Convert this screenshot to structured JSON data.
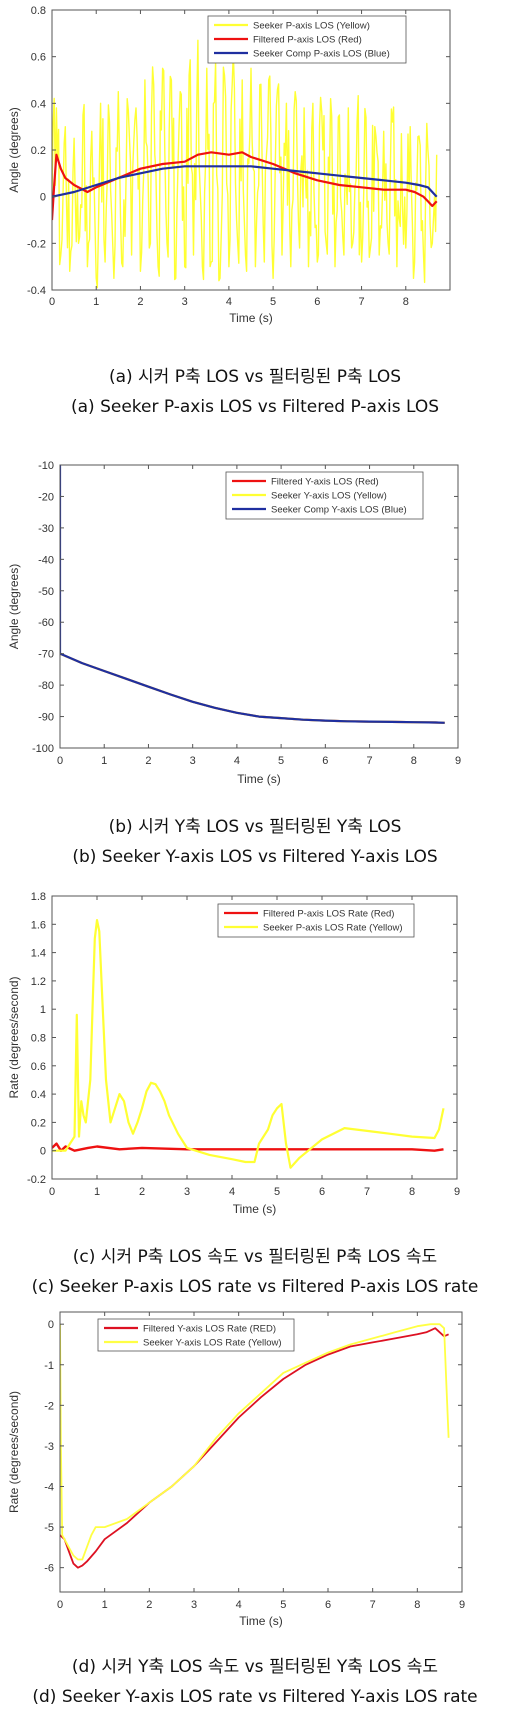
{
  "chart_data": [
    {
      "type": "line",
      "ylabel": "Angle (degrees)",
      "xlabel": "Time (s)",
      "xlim": [
        0,
        9
      ],
      "ylim": [
        -0.4,
        0.8
      ],
      "xticks": [
        0,
        1,
        2,
        3,
        4,
        5,
        6,
        7,
        8
      ],
      "yticks": [
        -0.4,
        -0.2,
        0,
        0.2,
        0.4,
        0.6,
        0.8
      ],
      "grid": false,
      "legend_position": "top-right",
      "series": [
        {
          "name": "Seeker P-axis LOS (Yellow)",
          "color": "#ffff33",
          "noisy": true,
          "width": 1.4,
          "x": [
            0,
            0.1,
            0.2,
            0.3,
            0.4,
            0.5,
            0.6,
            0.7,
            0.8,
            0.9,
            1.0,
            1.1,
            1.2,
            1.3,
            1.4,
            1.5,
            1.6,
            1.7,
            1.8,
            1.9,
            2.0,
            2.1,
            2.2,
            2.3,
            2.4,
            2.5,
            2.6,
            2.7,
            2.8,
            2.9,
            3.0,
            3.1,
            3.2,
            3.3,
            3.4,
            3.5,
            3.6,
            3.7,
            3.8,
            3.9,
            4.0,
            4.1,
            4.2,
            4.3,
            4.4,
            4.5,
            4.6,
            4.7,
            4.8,
            4.9,
            5.0,
            5.1,
            5.2,
            5.3,
            5.4,
            5.5,
            5.6,
            5.7,
            5.8,
            5.9,
            6.0,
            6.1,
            6.2,
            6.3,
            6.4,
            6.5,
            6.6,
            6.7,
            6.8,
            6.9,
            7.0,
            7.1,
            7.2,
            7.3,
            7.4,
            7.5,
            7.6,
            7.7,
            7.8,
            7.9,
            8.0,
            8.1,
            8.2,
            8.3,
            8.4,
            8.5,
            8.6,
            8.7
          ],
          "y": [
            0.0,
            0.38,
            -0.25,
            0.3,
            -0.32,
            0.25,
            -0.2,
            0.35,
            -0.3,
            0.28,
            -0.35,
            0.4,
            -0.28,
            0.32,
            -0.35,
            0.45,
            -0.3,
            0.42,
            -0.25,
            0.38,
            -0.32,
            0.5,
            -0.22,
            0.48,
            -0.3,
            0.55,
            -0.2,
            0.5,
            -0.35,
            0.45,
            -0.3,
            0.52,
            -0.25,
            0.67,
            -0.3,
            0.55,
            -0.28,
            0.58,
            -0.35,
            0.52,
            -0.3,
            0.62,
            -0.2,
            0.5,
            -0.32,
            0.55,
            -0.3,
            0.48,
            -0.28,
            0.5,
            -0.35,
            0.46,
            -0.25,
            0.4,
            -0.3,
            0.45,
            -0.22,
            0.38,
            -0.3,
            0.4,
            -0.28,
            0.36,
            -0.2,
            0.42,
            -0.3,
            0.35,
            -0.25,
            0.38,
            -0.2,
            0.32,
            -0.28,
            0.34,
            -0.22,
            0.3,
            -0.25,
            0.28,
            -0.2,
            0.32,
            -0.3,
            0.27,
            -0.22,
            0.3,
            -0.28,
            0.26,
            -0.25,
            0.2,
            -0.2,
            0.18
          ]
        },
        {
          "name": "Filtered P-axis LOS (Red)",
          "color": "#ee1111",
          "width": 2.2,
          "x": [
            0,
            0.05,
            0.1,
            0.2,
            0.3,
            0.5,
            0.8,
            1.0,
            1.5,
            2.0,
            2.5,
            3.0,
            3.3,
            3.6,
            4.0,
            4.3,
            4.5,
            5.0,
            5.5,
            6.0,
            6.5,
            7.0,
            7.5,
            8.0,
            8.2,
            8.4,
            8.5,
            8.6,
            8.7
          ],
          "y": [
            -0.1,
            0.05,
            0.18,
            0.12,
            0.08,
            0.05,
            0.02,
            0.04,
            0.08,
            0.12,
            0.14,
            0.15,
            0.18,
            0.19,
            0.18,
            0.19,
            0.17,
            0.14,
            0.1,
            0.07,
            0.05,
            0.04,
            0.03,
            0.03,
            0.02,
            0.0,
            -0.02,
            -0.04,
            -0.02
          ]
        },
        {
          "name": "Seeker Comp P-axis LOS (Blue)",
          "color": "#1f2fa0",
          "width": 2.2,
          "x": [
            0,
            0.5,
            1,
            1.5,
            2,
            2.5,
            3,
            3.5,
            4,
            4.5,
            5,
            5.5,
            6,
            6.5,
            7,
            7.5,
            8,
            8.3,
            8.5,
            8.6,
            8.7
          ],
          "y": [
            0.0,
            0.02,
            0.05,
            0.08,
            0.1,
            0.12,
            0.13,
            0.13,
            0.13,
            0.13,
            0.12,
            0.11,
            0.1,
            0.09,
            0.08,
            0.07,
            0.06,
            0.05,
            0.04,
            0.02,
            0.0
          ]
        }
      ]
    },
    {
      "type": "line",
      "ylabel": "Angle (degrees)",
      "xlabel": "Time (s)",
      "xlim": [
        0,
        9
      ],
      "ylim": [
        -100,
        -10
      ],
      "xticks": [
        0,
        1,
        2,
        3,
        4,
        5,
        6,
        7,
        8,
        9
      ],
      "yticks": [
        -100,
        -90,
        -80,
        -70,
        -60,
        -50,
        -40,
        -30,
        -20,
        -10
      ],
      "grid": false,
      "legend_position": "top-right",
      "series": [
        {
          "name": "Filtered Y-axis LOS (Red)",
          "color": "#ee1111",
          "width": 2.2,
          "x": [
            0,
            0.5,
            1,
            1.5,
            2,
            2.5,
            3,
            3.5,
            4,
            4.5,
            5,
            5.5,
            6,
            6.5,
            7,
            7.5,
            8,
            8.5,
            8.7
          ],
          "y": [
            -70,
            -73,
            -75.5,
            -78,
            -80.5,
            -83,
            -85.3,
            -87.2,
            -88.8,
            -90,
            -90.5,
            -91,
            -91.3,
            -91.5,
            -91.6,
            -91.7,
            -91.8,
            -91.9,
            -92
          ]
        },
        {
          "name": "Seeker Y-axis LOS (Yellow)",
          "color": "#ffff33",
          "width": 2.2,
          "x": [
            0,
            0.5,
            1,
            1.5,
            2,
            2.5,
            3,
            3.5,
            4,
            4.5,
            5,
            5.5,
            6,
            6.5,
            7,
            7.5,
            8,
            8.5,
            8.7
          ],
          "y": [
            -70,
            -73,
            -75.5,
            -78,
            -80.5,
            -83,
            -85.3,
            -87.2,
            -88.8,
            -90,
            -90.5,
            -91,
            -91.3,
            -91.5,
            -91.6,
            -91.7,
            -91.8,
            -91.9,
            -92
          ]
        },
        {
          "name": "Seeker Comp Y-axis LOS (Blue)",
          "color": "#1f2fa0",
          "width": 2.2,
          "x": [
            0,
            0,
            0.01,
            0.5,
            1,
            1.5,
            2,
            2.5,
            3,
            3.5,
            4,
            4.5,
            5,
            5.5,
            6,
            6.5,
            7,
            7.5,
            8,
            8.5,
            8.7
          ],
          "y": [
            -10,
            -70,
            -70,
            -73,
            -75.5,
            -78,
            -80.5,
            -83,
            -85.3,
            -87.2,
            -88.8,
            -90,
            -90.5,
            -91,
            -91.3,
            -91.5,
            -91.6,
            -91.7,
            -91.8,
            -91.9,
            -92
          ]
        }
      ]
    },
    {
      "type": "line",
      "ylabel": "Rate (degrees/second)",
      "xlabel": "Time (s)",
      "xlim": [
        0,
        9
      ],
      "ylim": [
        -0.2,
        1.8
      ],
      "xticks": [
        0,
        1,
        2,
        3,
        4,
        5,
        6,
        7,
        8,
        9
      ],
      "yticks": [
        -0.2,
        0,
        0.2,
        0.4,
        0.6,
        0.8,
        1,
        1.2,
        1.4,
        1.6,
        1.8
      ],
      "grid": false,
      "legend_position": "top-right",
      "series": [
        {
          "name": "Filtered P-axis LOS Rate (Red)",
          "color": "#ee1111",
          "width": 2.4,
          "x": [
            0,
            0.1,
            0.2,
            0.3,
            0.5,
            0.8,
            1.0,
            1.5,
            2,
            3,
            4,
            5,
            6,
            7,
            8,
            8.5,
            8.7
          ],
          "y": [
            0.02,
            0.05,
            0.0,
            0.03,
            0.0,
            0.02,
            0.03,
            0.01,
            0.02,
            0.01,
            0.01,
            0.01,
            0.01,
            0.01,
            0.01,
            0.0,
            0.01
          ]
        },
        {
          "name": "Seeker P-axis LOS Rate (Yellow)",
          "color": "#ffff33",
          "width": 2.2,
          "x": [
            0,
            0.3,
            0.4,
            0.5,
            0.55,
            0.6,
            0.65,
            0.7,
            0.75,
            0.85,
            0.9,
            0.95,
            1.0,
            1.05,
            1.1,
            1.2,
            1.3,
            1.4,
            1.5,
            1.6,
            1.7,
            1.8,
            1.9,
            2.0,
            2.1,
            2.2,
            2.3,
            2.4,
            2.5,
            2.6,
            2.8,
            3.0,
            3.5,
            4.0,
            4.3,
            4.5,
            4.6,
            4.8,
            4.9,
            5.0,
            5.1,
            5.2,
            5.3,
            5.5,
            6.0,
            6.5,
            7.0,
            7.5,
            8.0,
            8.5,
            8.6,
            8.7
          ],
          "y": [
            0.0,
            0.0,
            0.05,
            0.1,
            0.96,
            0.1,
            0.35,
            0.25,
            0.2,
            0.5,
            1.0,
            1.5,
            1.63,
            1.55,
            1.2,
            0.5,
            0.2,
            0.3,
            0.4,
            0.35,
            0.2,
            0.12,
            0.2,
            0.3,
            0.42,
            0.48,
            0.47,
            0.42,
            0.35,
            0.25,
            0.12,
            0.02,
            -0.03,
            -0.06,
            -0.08,
            -0.08,
            0.05,
            0.15,
            0.25,
            0.3,
            0.33,
            0.05,
            -0.12,
            -0.05,
            0.08,
            0.16,
            0.14,
            0.12,
            0.1,
            0.09,
            0.15,
            0.3
          ]
        }
      ]
    },
    {
      "type": "line",
      "ylabel": "Rate (degrees/second)",
      "xlabel": "Time (s)",
      "xlim": [
        0,
        9
      ],
      "ylim": [
        -6.6,
        0.3
      ],
      "xticks": [
        0,
        1,
        2,
        3,
        4,
        5,
        6,
        7,
        8,
        9
      ],
      "yticks": [
        -6,
        -5,
        -4,
        -3,
        -2,
        -1,
        0
      ],
      "grid": false,
      "legend_position": "top-left",
      "series": [
        {
          "name": "Filtered Y-axis LOS Rate (RED)",
          "color": "#dd1122",
          "width": 1.8,
          "x": [
            0,
            0.1,
            0.2,
            0.3,
            0.4,
            0.5,
            0.6,
            0.8,
            1.0,
            1.5,
            2,
            2.5,
            3,
            3.5,
            4,
            4.5,
            5,
            5.5,
            6,
            6.5,
            7,
            7.5,
            8,
            8.2,
            8.3,
            8.4,
            8.5,
            8.6,
            8.7
          ],
          "y": [
            -5.2,
            -5.3,
            -5.6,
            -5.9,
            -6.0,
            -5.95,
            -5.85,
            -5.6,
            -5.3,
            -4.9,
            -4.4,
            -4.0,
            -3.5,
            -2.9,
            -2.3,
            -1.8,
            -1.35,
            -1.0,
            -0.75,
            -0.55,
            -0.45,
            -0.35,
            -0.25,
            -0.2,
            -0.15,
            -0.1,
            -0.2,
            -0.3,
            -0.25
          ]
        },
        {
          "name": "Seeker Y-axis LOS Rate (Yellow)",
          "color": "#ffff44",
          "width": 1.8,
          "x": [
            0,
            0.02,
            0.05,
            0.1,
            0.2,
            0.3,
            0.4,
            0.5,
            0.6,
            0.7,
            0.8,
            1.0,
            1.5,
            2,
            2.5,
            3,
            3.5,
            4,
            4.5,
            5,
            5.5,
            6,
            6.5,
            7,
            7.5,
            8,
            8.3,
            8.5,
            8.6,
            8.65,
            8.7
          ],
          "y": [
            0,
            -3,
            -5.2,
            -5.3,
            -5.5,
            -5.7,
            -5.8,
            -5.8,
            -5.5,
            -5.2,
            -5.0,
            -5.0,
            -4.8,
            -4.4,
            -4.0,
            -3.5,
            -2.8,
            -2.2,
            -1.7,
            -1.2,
            -0.95,
            -0.7,
            -0.5,
            -0.35,
            -0.2,
            -0.05,
            0.0,
            0.0,
            -0.1,
            -1.5,
            -2.8
          ]
        }
      ]
    }
  ],
  "captions": [
    {
      "ko": "(a) 시커 P축 LOS vs 필터링된 P축 LOS",
      "en": "(a) Seeker P-axis LOS vs Filtered P-axis LOS"
    },
    {
      "ko": "(b) 시커 Y축 LOS vs 필터링된 Y축 LOS",
      "en": "(b) Seeker Y-axis LOS vs Filtered Y-axis LOS"
    },
    {
      "ko": "(c) 시커 P축 LOS 속도 vs 필터링된 P축 LOS 속도",
      "en": "(c) Seeker P-axis LOS rate vs Filtered P-axis LOS rate"
    },
    {
      "ko": "(d) 시커 Y축 LOS 속도 vs 필터링된 Y축 LOS 속도",
      "en": "(d) Seeker Y-axis LOS rate vs Filtered Y-axis LOS rate"
    }
  ]
}
